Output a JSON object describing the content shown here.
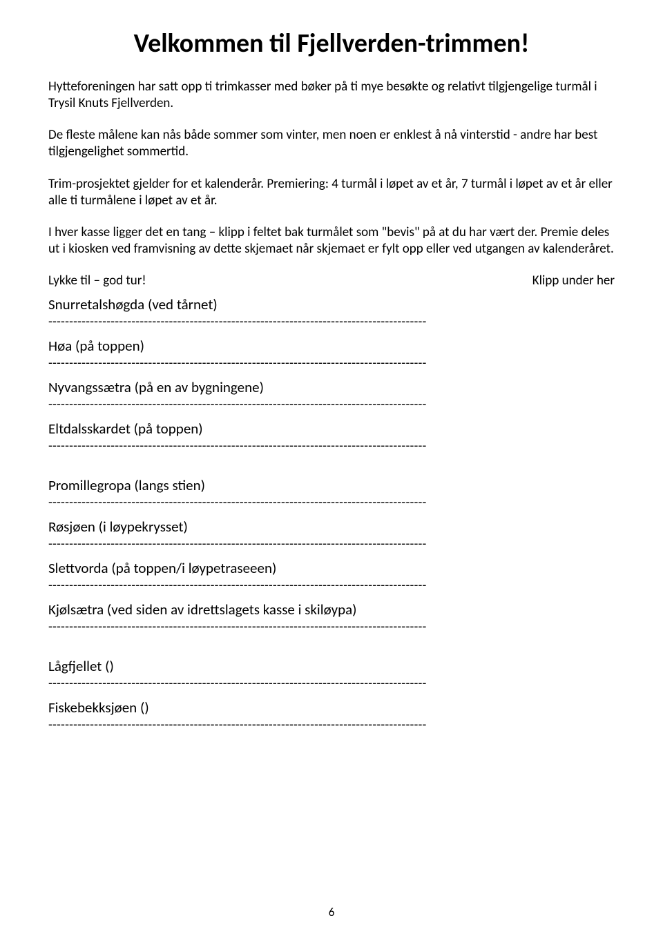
{
  "title": "Velkommen til Fjellverden-trimmen!",
  "paragraphs": {
    "p1": "Hytteforeningen har satt opp ti trimkasser med bøker på ti mye besøkte og relativt tilgjengelige turmål i Trysil Knuts Fjellverden.",
    "p2": "De fleste målene kan nås både sommer som vinter, men noen er enklest å nå vinterstid - andre har best tilgjengelighet sommertid.",
    "p3": "Trim-prosjektet gjelder for et kalenderår. Premiering: 4 turmål i løpet av et år, 7 turmål i løpet av et år eller alle ti turmålene i løpet av et år.",
    "p4": "I hver kasse ligger det en tang – klipp i feltet bak turmålet som \"bevis\" på at du har vært der. Premie deles ut i kiosken ved framvisning av dette skjemaet når skjemaet er fylt opp eller ved utgangen av kalenderåret."
  },
  "footer_line": {
    "left": "Lykke til – god tur!",
    "right": "Klipp under her"
  },
  "destinations": [
    "Snurretalshøgda (ved tårnet)",
    "Høa (på toppen)",
    "Nyvangssætra (på en av bygningene)",
    "Eltdalsskardet (på toppen)",
    "Promillegropa (langs stien)",
    "Røsjøen (i løypekrysset)",
    "Slettvorda (på toppen/i løypetraseeen)",
    "Kjølsætra (ved siden av idrettslagets kasse i skiløypa)",
    "Lågfjellet ()",
    "Fiskebekksjøen ()"
  ],
  "dash_line": "-------------------------------------------------------------------------------------------",
  "gap_after": [
    3,
    7
  ],
  "page_number": "6"
}
